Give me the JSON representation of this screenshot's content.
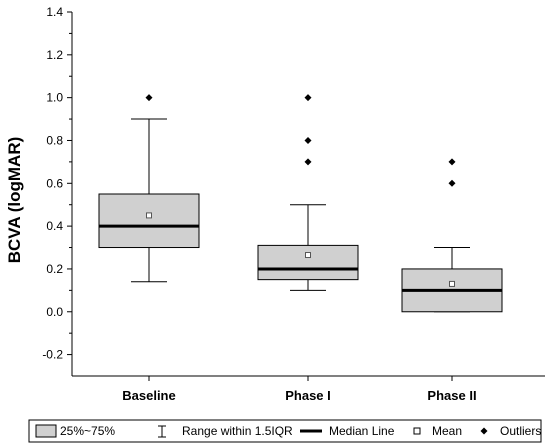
{
  "chart_data": {
    "type": "box",
    "ylabel": "BCVA (logMAR)",
    "ylim": [
      -0.3,
      1.4
    ],
    "yticks": [
      -0.2,
      0.0,
      0.2,
      0.4,
      0.6,
      0.8,
      1.0,
      1.2,
      1.4
    ],
    "ytick_labels": [
      "-0.2",
      "0.0",
      "0.2",
      "0.4",
      "0.6",
      "0.8",
      "1.0",
      "1.2",
      "1.4"
    ],
    "categories": [
      "Baseline",
      "Phase I",
      "Phase II"
    ],
    "boxes": [
      {
        "whisker_low": 0.14,
        "q1": 0.3,
        "median": 0.4,
        "q3": 0.55,
        "whisker_high": 0.9,
        "mean": 0.45,
        "outliers": [
          1.0
        ]
      },
      {
        "whisker_low": 0.1,
        "q1": 0.15,
        "median": 0.2,
        "q3": 0.31,
        "whisker_high": 0.5,
        "mean": 0.265,
        "outliers": [
          0.7,
          0.8,
          1.0
        ]
      },
      {
        "whisker_low": 0.0,
        "q1": 0.0,
        "median": 0.1,
        "q3": 0.2,
        "whisker_high": 0.3,
        "mean": 0.13,
        "outliers": [
          0.6,
          0.7
        ]
      }
    ],
    "colors": {
      "box_fill": "#d0d0d0",
      "stroke": "#000000"
    },
    "legend": {
      "position": "bottom",
      "items": {
        "box": "25%~75%",
        "range": "Range within 1.5IQR",
        "median": "Median Line",
        "mean": "Mean",
        "outliers": "Outliers"
      }
    }
  }
}
